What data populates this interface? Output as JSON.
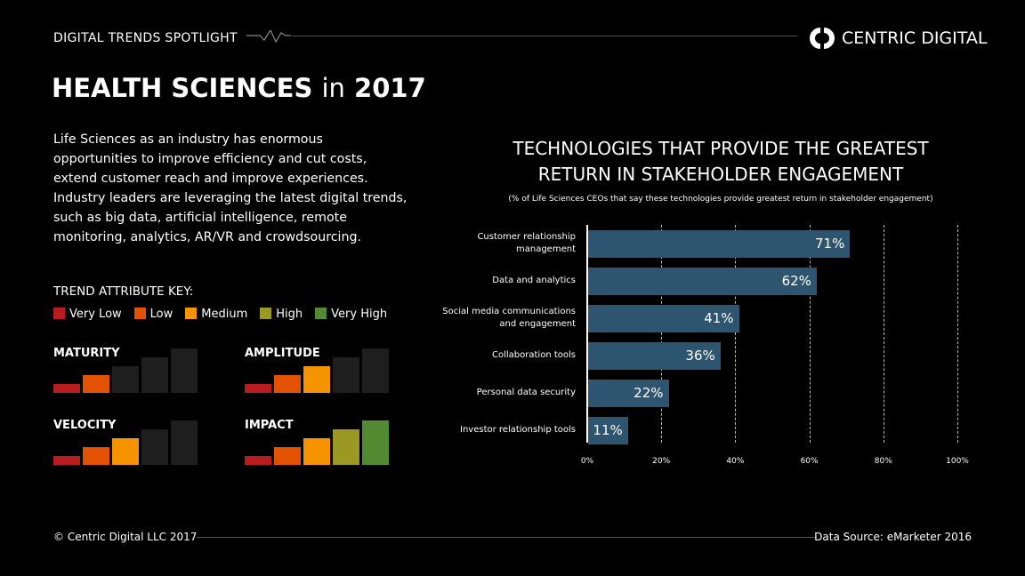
{
  "header": {
    "spotlight": "DIGITAL TRENDS SPOTLIGHT",
    "brand": "CENTRIC DIGITAL",
    "logo_icon": "centric-digital-logo"
  },
  "title": {
    "main": "HEALTH SCIENCES",
    "connector": "in",
    "year": "2017"
  },
  "intro": "Life Sciences as an industry has enormous opportunities to improve efficiency and cut costs, extend customer reach and improve experiences. Industry leaders are leveraging the latest digital trends, such as big data, artificial intelligence, remote monitoring, analytics, AR/VR and crowdsourcing.",
  "trend_key": {
    "heading": "TREND ATTRIBUTE KEY:",
    "levels": [
      {
        "label": "Very Low",
        "color": "#b81c1f"
      },
      {
        "label": "Low",
        "color": "#e35200"
      },
      {
        "label": "Medium",
        "color": "#f59300"
      },
      {
        "label": "High",
        "color": "#9a9923"
      },
      {
        "label": "Very High",
        "color": "#548a31"
      }
    ],
    "inactive_color": "#1e1e1e"
  },
  "attributes": [
    {
      "name": "MATURITY",
      "level": 2
    },
    {
      "name": "AMPLITUDE",
      "level": 3
    },
    {
      "name": "VELOCITY",
      "level": 3
    },
    {
      "name": "IMPACT",
      "level": 5
    }
  ],
  "chart_data": {
    "type": "bar",
    "orientation": "horizontal",
    "title": "TECHNOLOGIES THAT PROVIDE THE GREATEST RETURN IN STAKEHOLDER ENGAGEMENT",
    "subtitle": "(% of Life Sciences CEOs that say these technologies provide greatest return in stakeholder engagement)",
    "categories": [
      "Customer relationship management",
      "Data and analytics",
      "Social media communications and engagement",
      "Collaboration tools",
      "Personal data security",
      "Investor relationship tools"
    ],
    "values": [
      71,
      62,
      41,
      36,
      22,
      11
    ],
    "value_labels": [
      "71%",
      "62%",
      "41%",
      "36%",
      "22%",
      "11%"
    ],
    "xlim": [
      0,
      100
    ],
    "ticks": [
      0,
      20,
      40,
      60,
      80,
      100
    ],
    "tick_labels": [
      "0%",
      "20%",
      "40%",
      "60%",
      "80%",
      "100%"
    ],
    "grid": "dashed vertical",
    "bar_color": "#2d5570"
  },
  "footer": {
    "copyright": "© Centric Digital LLC 2017",
    "source": "Data Source: eMarketer 2016"
  }
}
